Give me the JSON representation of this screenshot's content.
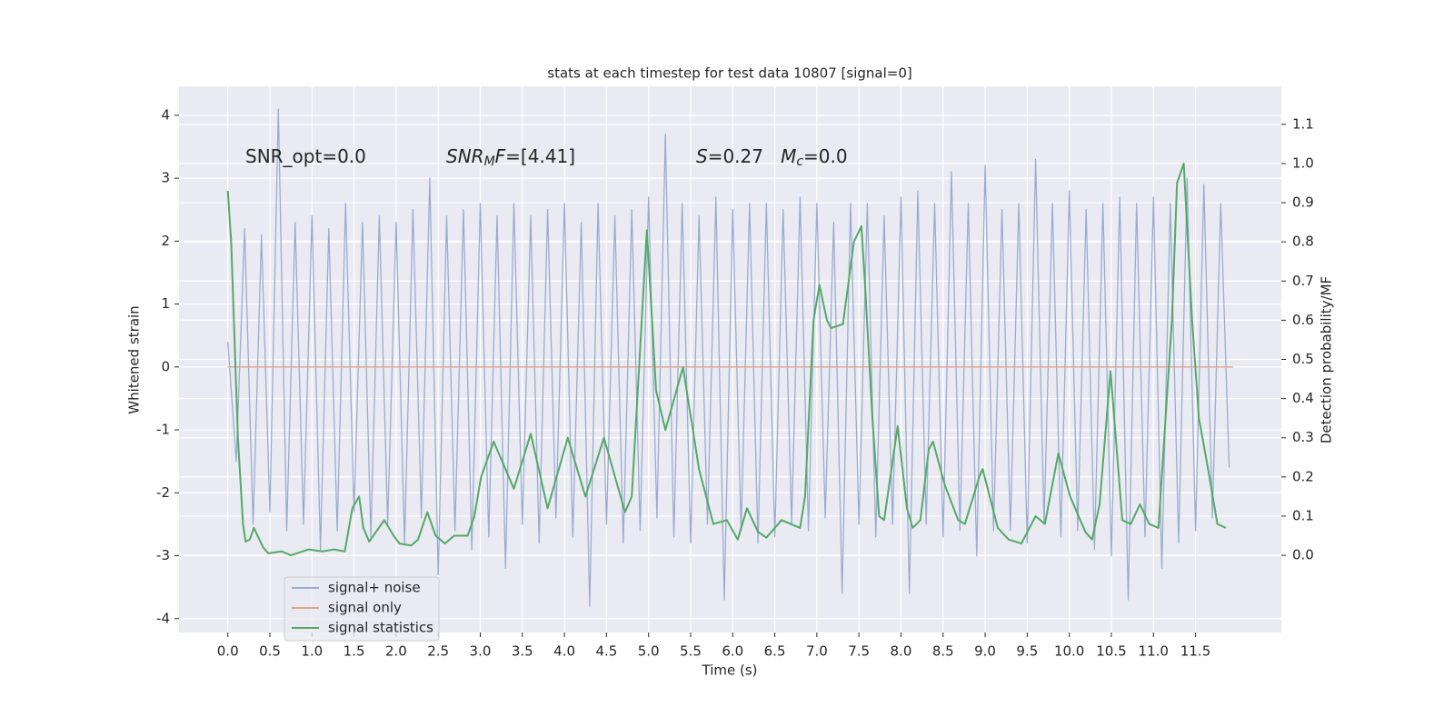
{
  "chart_data": {
    "type": "line",
    "title": "stats at each timestep for test data 10807 [signal=0]",
    "xlabel": "Time (s)",
    "ylabel": "Whitened strain",
    "y2label": "Detection probability/MF",
    "xlim": [
      -0.58,
      12.52
    ],
    "ylim": [
      -4.22,
      4.46
    ],
    "y2lim": [
      -0.197,
      1.197
    ],
    "xticks": [
      {
        "value": 0,
        "label": "0.0"
      },
      0.5,
      {
        "value": 1,
        "label": "1.0"
      },
      1.5,
      {
        "value": 2,
        "label": "2.0"
      },
      2.5,
      {
        "value": 3,
        "label": "3.0"
      },
      3.5,
      {
        "value": 4,
        "label": "4.0"
      },
      4.5,
      {
        "value": 5,
        "label": "5.0"
      },
      5.5,
      {
        "value": 6,
        "label": "6.0"
      },
      6.5,
      {
        "value": 7,
        "label": "7.0"
      },
      7.5,
      {
        "value": 8,
        "label": "8.0"
      },
      8.5,
      {
        "value": 9,
        "label": "9.0"
      },
      9.5,
      {
        "value": 10,
        "label": "10.0"
      },
      10.5,
      {
        "value": 11,
        "label": "11.0"
      },
      11.5
    ],
    "yticks": [
      -4,
      -3,
      -2,
      -1,
      0,
      1,
      2,
      3,
      4
    ],
    "y2ticks": [
      {
        "value": 0,
        "label": "0.0"
      },
      0.1,
      0.2,
      0.3,
      0.4,
      0.5,
      0.6,
      0.7,
      0.8,
      0.9,
      {
        "value": 1,
        "label": "1.0"
      },
      1.1
    ],
    "grid": true,
    "legend": "lower left",
    "annotations": [
      [
        {
          "text": "SNR_opt=0.0"
        }
      ],
      [
        {
          "text": "SNR",
          "style": "italic"
        },
        {
          "text": "M",
          "style": "italic-sub"
        },
        {
          "text": "F",
          "style": "italic"
        },
        {
          "text": "=[4.41]"
        }
      ],
      [
        {
          "text": "S",
          "style": "italic"
        },
        {
          "text": "=0.27   "
        },
        {
          "text": "M",
          "style": "italic"
        },
        {
          "text": "c",
          "style": "italic-sub"
        },
        {
          "text": "=0.0"
        }
      ]
    ],
    "series": [
      {
        "name": "signal+ noise",
        "color": "#9aacd1",
        "x": [
          0.0,
          0.1,
          0.2,
          0.3,
          0.4,
          0.5,
          0.6,
          0.7,
          0.8,
          0.9,
          1.0,
          1.1,
          1.2,
          1.3,
          1.4,
          1.5,
          1.6,
          1.7,
          1.8,
          1.9,
          2.0,
          2.1,
          2.2,
          2.3,
          2.4,
          2.5,
          2.6,
          2.7,
          2.8,
          2.9,
          3.0,
          3.1,
          3.2,
          3.3,
          3.4,
          3.5,
          3.6,
          3.7,
          3.8,
          3.9,
          4.0,
          4.1,
          4.2,
          4.3,
          4.4,
          4.5,
          4.6,
          4.7,
          4.8,
          4.9,
          5.0,
          5.1,
          5.2,
          5.3,
          5.4,
          5.5,
          5.6,
          5.7,
          5.8,
          5.9,
          6.0,
          6.1,
          6.2,
          6.3,
          6.4,
          6.5,
          6.6,
          6.7,
          6.8,
          6.9,
          7.0,
          7.1,
          7.2,
          7.3,
          7.4,
          7.5,
          7.6,
          7.7,
          7.8,
          7.9,
          8.0,
          8.1,
          8.2,
          8.3,
          8.4,
          8.5,
          8.6,
          8.7,
          8.8,
          8.9,
          9.0,
          9.1,
          9.2,
          9.3,
          9.4,
          9.5,
          9.6,
          9.7,
          9.8,
          9.9,
          10.0,
          10.1,
          10.2,
          10.3,
          10.4,
          10.5,
          10.6,
          10.7,
          10.8,
          10.9,
          11.0,
          11.1,
          11.2,
          11.3,
          11.4,
          11.5,
          11.6,
          11.7,
          11.8,
          11.9
        ],
        "values": [
          0.4,
          -1.5,
          2.2,
          -2.5,
          2.1,
          -2.3,
          4.1,
          -2.6,
          2.3,
          -2.5,
          2.4,
          -2.9,
          2.2,
          -2.6,
          2.6,
          -2.3,
          2.3,
          -2.7,
          2.4,
          -2.5,
          2.3,
          -2.8,
          2.5,
          -2.4,
          3.0,
          -3.3,
          2.4,
          -2.6,
          2.5,
          -2.9,
          2.6,
          -2.7,
          2.4,
          -3.2,
          2.6,
          -2.5,
          2.4,
          -2.8,
          2.5,
          -2.4,
          2.6,
          -2.7,
          2.3,
          -3.8,
          2.6,
          -2.5,
          2.4,
          -2.8,
          2.5,
          -2.6,
          2.7,
          -2.4,
          3.7,
          -2.7,
          2.6,
          -2.8,
          2.4,
          -2.5,
          2.7,
          -3.7,
          2.5,
          -2.6,
          2.6,
          -2.8,
          2.6,
          -2.7,
          2.5,
          -2.5,
          2.7,
          -2.6,
          2.6,
          -2.4,
          2.3,
          -3.6,
          2.6,
          -2.5,
          2.6,
          -2.7,
          2.4,
          -2.5,
          2.7,
          -3.6,
          2.8,
          -2.5,
          2.6,
          -2.7,
          3.1,
          -2.6,
          2.6,
          -3.0,
          3.2,
          -2.6,
          2.5,
          -2.6,
          2.6,
          -2.8,
          3.3,
          -2.5,
          2.6,
          -2.7,
          2.8,
          -2.6,
          2.5,
          -2.9,
          2.6,
          -3.0,
          2.7,
          -3.7,
          2.6,
          -2.7,
          2.7,
          -3.2,
          2.6,
          -2.8,
          3.0,
          -2.6,
          2.9,
          -2.4,
          2.6,
          -1.6
        ]
      },
      {
        "name": "signal only",
        "color": "#e0a48a",
        "x": [
          0.0,
          11.95
        ],
        "values": [
          0,
          0
        ]
      },
      {
        "name": "signal statistics",
        "color": "#55a868",
        "axis": "y2",
        "x": [
          0.0,
          0.04,
          0.12,
          0.18,
          0.21,
          0.26,
          0.31,
          0.42,
          0.48,
          0.64,
          0.75,
          0.96,
          1.12,
          1.26,
          1.39,
          1.48,
          1.56,
          1.61,
          1.68,
          1.86,
          1.97,
          2.04,
          2.18,
          2.26,
          2.37,
          2.47,
          2.58,
          2.69,
          2.85,
          2.93,
          3.01,
          3.16,
          3.4,
          3.6,
          3.8,
          4.04,
          4.25,
          4.47,
          4.72,
          4.8,
          4.98,
          5.09,
          5.2,
          5.41,
          5.6,
          5.77,
          5.93,
          6.06,
          6.17,
          6.3,
          6.4,
          6.58,
          6.8,
          6.86,
          6.96,
          7.03,
          7.12,
          7.17,
          7.31,
          7.44,
          7.53,
          7.57,
          7.66,
          7.74,
          7.8,
          7.96,
          8.07,
          8.14,
          8.23,
          8.33,
          8.38,
          8.52,
          8.68,
          8.76,
          8.93,
          8.97,
          9.15,
          9.28,
          9.43,
          9.6,
          9.71,
          9.87,
          10.01,
          10.19,
          10.27,
          10.36,
          10.49,
          10.63,
          10.73,
          10.84,
          10.95,
          11.06,
          11.22,
          11.28,
          11.36,
          11.46,
          11.54,
          11.65,
          11.76,
          11.86
        ],
        "values": [
          0.93,
          0.8,
          0.3,
          0.08,
          0.035,
          0.04,
          0.07,
          0.02,
          0.005,
          0.01,
          0.0,
          0.015,
          0.01,
          0.015,
          0.01,
          0.12,
          0.15,
          0.07,
          0.035,
          0.09,
          0.05,
          0.03,
          0.025,
          0.04,
          0.11,
          0.05,
          0.03,
          0.05,
          0.05,
          0.1,
          0.2,
          0.29,
          0.17,
          0.31,
          0.12,
          0.3,
          0.15,
          0.3,
          0.11,
          0.15,
          0.83,
          0.42,
          0.32,
          0.48,
          0.22,
          0.08,
          0.09,
          0.04,
          0.12,
          0.06,
          0.045,
          0.09,
          0.07,
          0.15,
          0.6,
          0.69,
          0.6,
          0.58,
          0.59,
          0.8,
          0.84,
          0.7,
          0.35,
          0.1,
          0.09,
          0.33,
          0.12,
          0.07,
          0.09,
          0.27,
          0.29,
          0.18,
          0.09,
          0.08,
          0.2,
          0.22,
          0.07,
          0.04,
          0.03,
          0.1,
          0.08,
          0.26,
          0.15,
          0.06,
          0.04,
          0.13,
          0.47,
          0.09,
          0.08,
          0.13,
          0.08,
          0.07,
          0.6,
          0.95,
          1.0,
          0.6,
          0.35,
          0.22,
          0.08,
          0.07
        ]
      }
    ]
  }
}
